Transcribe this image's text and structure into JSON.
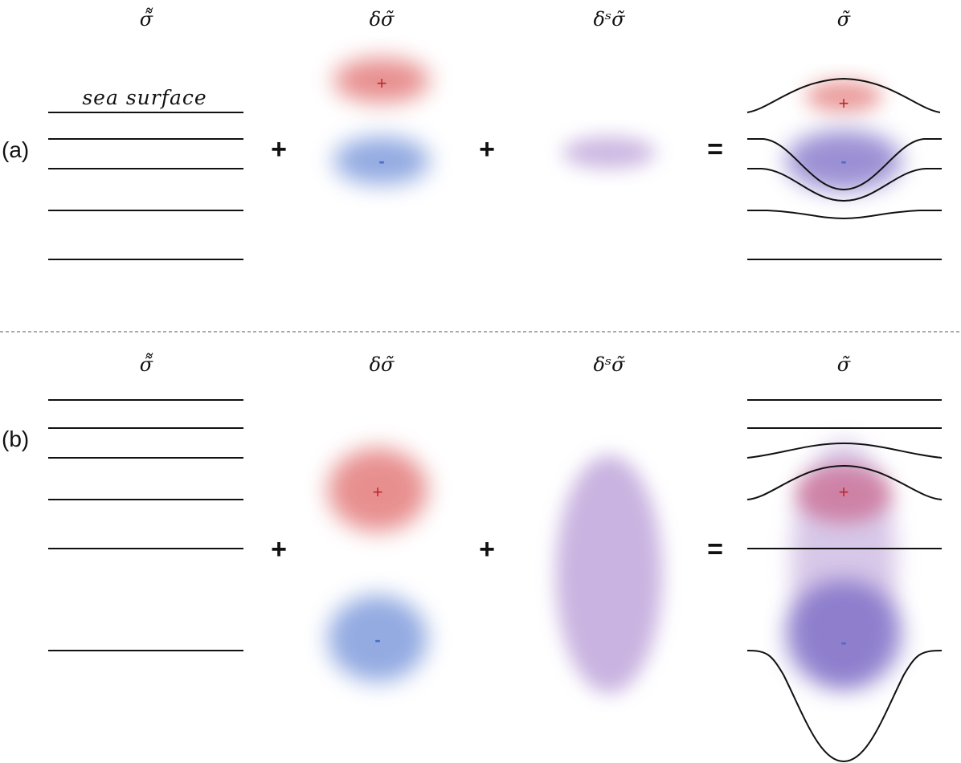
{
  "headers": {
    "mean": "σ̃̃",
    "perturbation": "δσ̃",
    "static": "δˢσ̃",
    "total": "σ̃"
  },
  "sea_surface_label": "sea surface",
  "panels": [
    {
      "label": "(a)"
    },
    {
      "label": "(b)"
    }
  ],
  "operators": {
    "plus": "+",
    "equals": "="
  },
  "signs": {
    "positive": "+",
    "negative": "-"
  },
  "colors": {
    "positive_anomaly": "#e06a6a",
    "negative_anomaly": "#6f8fd8",
    "static_anomaly": "#b79ad6",
    "combined_negative": "#7b6cc6",
    "lines": "#111111"
  }
}
